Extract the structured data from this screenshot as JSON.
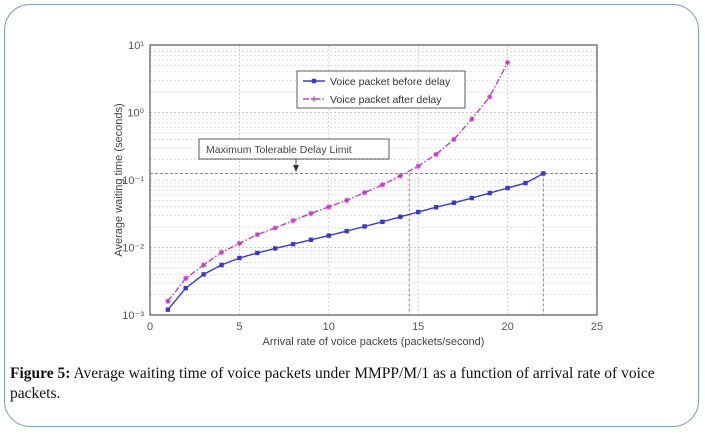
{
  "figure": {
    "caption_label": "Figure 5:",
    "caption_text": " Average waiting time of voice packets under MMPP/M/1 as a function of arrival rate of voice packets."
  },
  "chart_data": {
    "type": "line",
    "xlabel": "Arrival rate of voice packets (packets/second)",
    "ylabel": "Average waiting time (seconds)",
    "xlim": [
      0,
      25
    ],
    "ylim": [
      0.001,
      10
    ],
    "yscale": "log",
    "xticks": [
      "0",
      "5",
      "10",
      "15",
      "20",
      "25"
    ],
    "yticks": [
      "10⁻³",
      "10⁻²",
      "10⁻¹",
      "10⁰",
      "10¹"
    ],
    "grid": true,
    "legend_position": "top-center",
    "series": [
      {
        "name": "Voice packet before delay",
        "color": "#3a3ac8",
        "style": "solid",
        "marker": "square",
        "x": [
          1,
          2,
          3,
          4,
          5,
          6,
          7,
          8,
          9,
          10,
          11,
          12,
          13,
          14,
          15,
          16,
          17,
          18,
          19,
          20,
          21,
          22
        ],
        "y": [
          0.0012,
          0.0025,
          0.004,
          0.0055,
          0.007,
          0.0083,
          0.0097,
          0.0112,
          0.013,
          0.015,
          0.0175,
          0.0205,
          0.024,
          0.0285,
          0.0335,
          0.0395,
          0.046,
          0.054,
          0.064,
          0.076,
          0.09,
          0.125
        ]
      },
      {
        "name": "Voice packet after delay",
        "color": "#c040c0",
        "style": "dashdot",
        "marker": "star",
        "x": [
          1,
          2,
          3,
          4,
          5,
          6,
          7,
          8,
          9,
          10,
          11,
          12,
          13,
          14,
          15,
          16,
          17,
          18,
          19,
          20
        ],
        "y": [
          0.0016,
          0.0035,
          0.0055,
          0.0085,
          0.0115,
          0.0155,
          0.0195,
          0.025,
          0.032,
          0.04,
          0.05,
          0.065,
          0.085,
          0.115,
          0.16,
          0.24,
          0.4,
          0.8,
          1.7,
          5.5
        ]
      }
    ],
    "annotations": [
      {
        "text": "Maximum Tolerable Delay Limit",
        "y": 0.125,
        "color": "#e06060"
      },
      {
        "type": "vline",
        "x": 14.5,
        "color": "#e06060"
      },
      {
        "type": "vline",
        "x": 22,
        "color": "#e06060"
      }
    ]
  }
}
